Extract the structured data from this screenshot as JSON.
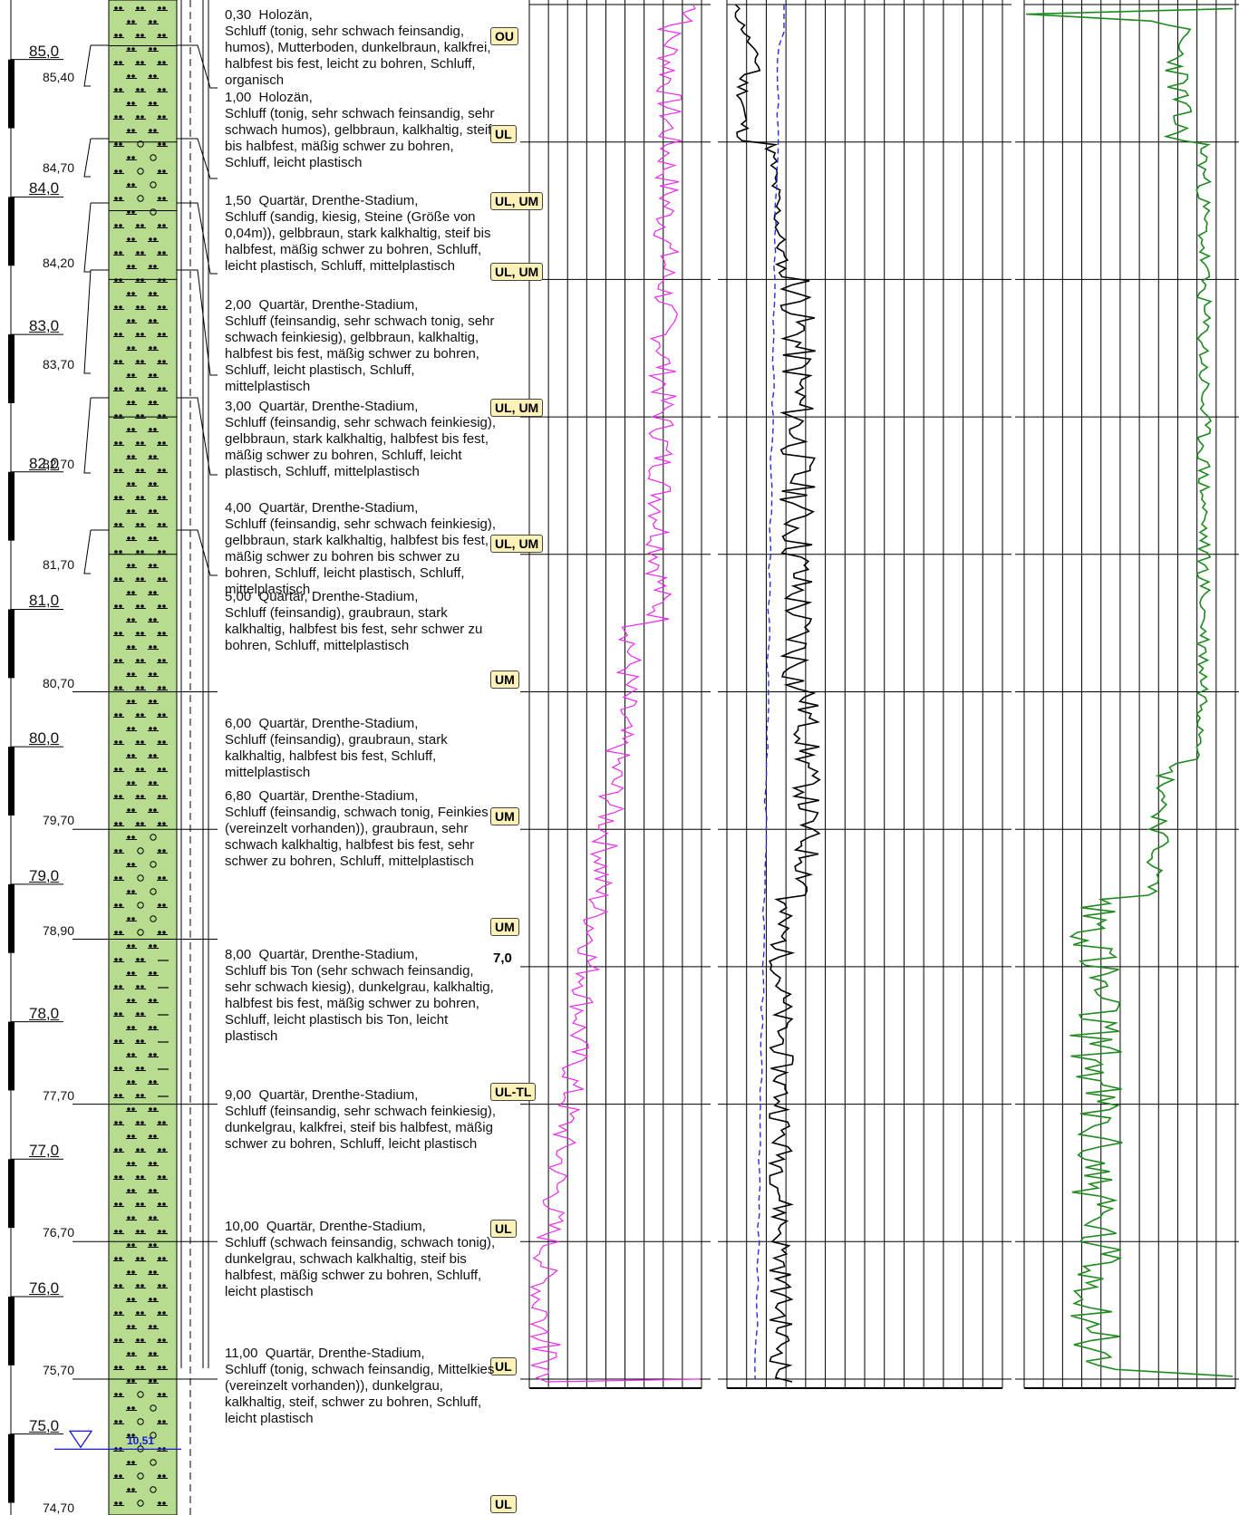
{
  "colors": {
    "soil_fill": "#b7dc90",
    "magenta_curve": "#ee28ee",
    "black_curve": "#000000",
    "blue_dashed": "#2a2ae0",
    "green_curve": "#1e8a1e",
    "class_badge": "#fcf2b8",
    "water_level": "#1a1ad8"
  },
  "elevations": [
    "85,0",
    "84,0",
    "83,0",
    "82,0",
    "81,0",
    "80,0",
    "79,0",
    "78,0",
    "77,0",
    "76,0",
    "75,0"
  ],
  "elevation_values": [
    85,
    84,
    83,
    82,
    81,
    80,
    79,
    78,
    77,
    76,
    75
  ],
  "water_level": {
    "label": "10,51",
    "depth": 10.51,
    "icon": "water-level-triangle-icon"
  },
  "depth_marker": {
    "label": "7,0",
    "depth": 7.0
  },
  "layers": [
    {
      "top": 0.0,
      "bottom": 0.3,
      "elev": "85,40",
      "class": "OU",
      "description": "0,30  Holozän,\nSchluff (tonig, sehr schwach feinsandig, humos), Mutterboden, dunkelbraun, kalkfrei, halbfest bis fest, leicht zu bohren, Schluff, organisch"
    },
    {
      "top": 0.3,
      "bottom": 1.0,
      "elev": "84,70",
      "class": "UL",
      "description": "1,00  Holozän,\nSchluff (tonig, sehr schwach feinsandig, sehr schwach humos), gelbbraun, kalkhaltig, steif bis halbfest, mäßig schwer zu bohren, Schluff, leicht plastisch"
    },
    {
      "top": 1.0,
      "bottom": 1.5,
      "elev": "84,20",
      "class": "UL, UM",
      "description": "1,50  Quartär, Drenthe-Stadium,\nSchluff (sandig, kiesig, Steine (Größe von 0,04m)), gelbbraun, stark kalkhaltig, steif bis halbfest, mäßig schwer zu bohren, Schluff, leicht plastisch, Schluff, mittelplastisch"
    },
    {
      "top": 1.5,
      "bottom": 2.0,
      "elev": "83,70",
      "class": "UL, UM",
      "description": "2,00  Quartär, Drenthe-Stadium,\nSchluff (feinsandig, sehr schwach tonig, sehr schwach feinkiesig), gelbbraun, kalkhaltig, halbfest bis fest, mäßig schwer zu bohren, Schluff, leicht plastisch, Schluff, mittelplastisch"
    },
    {
      "top": 2.0,
      "bottom": 3.0,
      "elev": "82,70",
      "class": "UL, UM",
      "description": "3,00  Quartär, Drenthe-Stadium,\nSchluff (feinsandig, sehr schwach feinkiesig), gelbbraun, stark kalkhaltig, halbfest bis fest, mäßig schwer zu bohren, Schluff, leicht plastisch, Schluff, mittelplastisch"
    },
    {
      "top": 3.0,
      "bottom": 4.0,
      "elev": "81,70",
      "class": "UL, UM",
      "description": "4,00  Quartär, Drenthe-Stadium,\nSchluff (feinsandig, sehr schwach feinkiesig), gelbbraun, stark kalkhaltig, halbfest bis fest, mäßig schwer zu bohren bis schwer zu bohren, Schluff, leicht plastisch, Schluff, mittelplastisch"
    },
    {
      "top": 4.0,
      "bottom": 5.0,
      "elev": "80,70",
      "class": "UM",
      "description": "5,00  Quartär, Drenthe-Stadium,\nSchluff (feinsandig), graubraun, stark kalkhaltig, halbfest bis fest, sehr schwer zu bohren, Schluff, mittelplastisch"
    },
    {
      "top": 5.0,
      "bottom": 6.0,
      "elev": "79,70",
      "class": "UM",
      "description": "6,00  Quartär, Drenthe-Stadium,\nSchluff (feinsandig), graubraun, stark kalkhaltig, halbfest bis fest, Schluff, mittelplastisch"
    },
    {
      "top": 6.0,
      "bottom": 6.8,
      "elev": "78,90",
      "class": "UM",
      "description": "6,80  Quartär, Drenthe-Stadium,\nSchluff (feinsandig, schwach tonig, Feinkies (vereinzelt vorhanden)), graubraun, sehr schwach kalkhaltig, halbfest bis fest, sehr schwer zu bohren, Schluff, mittelplastisch"
    },
    {
      "top": 6.8,
      "bottom": 8.0,
      "elev": "77,70",
      "class": "UL-TL",
      "description": "8,00  Quartär, Drenthe-Stadium,\nSchluff bis Ton (sehr schwach feinsandig, sehr schwach kiesig), dunkelgrau, kalkhaltig, halbfest bis fest, mäßig schwer zu bohren, Schluff, leicht plastisch bis Ton, leicht plastisch"
    },
    {
      "top": 8.0,
      "bottom": 9.0,
      "elev": "76,70",
      "class": "UL",
      "description": "9,00  Quartär, Drenthe-Stadium,\nSchluff (feinsandig, sehr schwach feinkiesig), dunkelgrau, kalkfrei, steif bis halbfest, mäßig schwer zu bohren, Schluff, leicht plastisch"
    },
    {
      "top": 9.0,
      "bottom": 10.0,
      "elev": "75,70",
      "class": "UL",
      "description": "10,00  Quartär, Drenthe-Stadium,\nSchluff (schwach feinsandig, schwach tonig), dunkelgrau, schwach kalkhaltig, steif bis halbfest, mäßig schwer zu bohren, Schluff, leicht plastisch"
    },
    {
      "top": 10.0,
      "bottom": 11.0,
      "elev": "74,70",
      "class": "UL",
      "description": "11,00  Quartär, Drenthe-Stadium,\nSchluff (tonig, schwach feinsandig, Mittelkies (vereinzelt vorhanden)), dunkelgrau, kalkhaltig, steif, schwer zu bohren, Schluff, leicht plastisch"
    }
  ]
}
